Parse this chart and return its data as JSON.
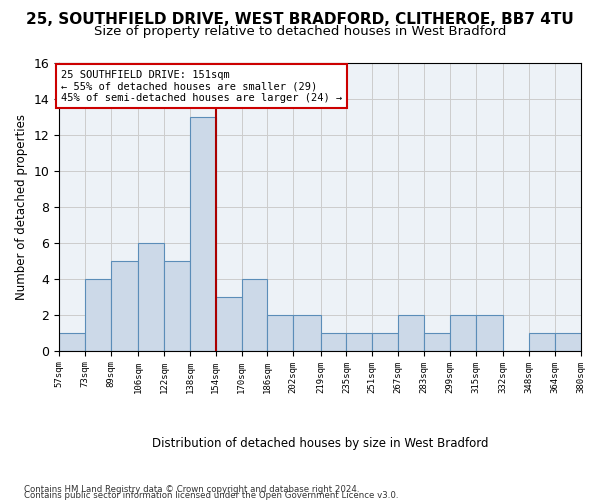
{
  "title1": "25, SOUTHFIELD DRIVE, WEST BRADFORD, CLITHEROE, BB7 4TU",
  "title2": "Size of property relative to detached houses in West Bradford",
  "xlabel": "Distribution of detached houses by size in West Bradford",
  "ylabel": "Number of detached properties",
  "footnote1": "Contains HM Land Registry data © Crown copyright and database right 2024.",
  "footnote2": "Contains public sector information licensed under the Open Government Licence v3.0.",
  "annotation_title": "25 SOUTHFIELD DRIVE: 151sqm",
  "annotation_line1": "← 55% of detached houses are smaller (29)",
  "annotation_line2": "45% of semi-detached houses are larger (24) →",
  "bar_edges": [
    57,
    73,
    89,
    106,
    122,
    138,
    154,
    170,
    186,
    202,
    219,
    235,
    251,
    267,
    283,
    299,
    315,
    332,
    348,
    364,
    380
  ],
  "bar_heights": [
    1,
    4,
    5,
    6,
    5,
    13,
    3,
    4,
    2,
    2,
    1,
    1,
    1,
    2,
    1,
    2,
    2,
    0,
    1,
    1
  ],
  "bar_color": "#ccd9e8",
  "bar_edgecolor": "#5b8db8",
  "property_line_x": 154,
  "ylim": [
    0,
    16
  ],
  "yticks": [
    0,
    2,
    4,
    6,
    8,
    10,
    12,
    14,
    16
  ],
  "grid_color": "#cccccc",
  "bg_color": "#edf2f7",
  "annotation_box_color": "#cc0000",
  "property_line_color": "#aa0000",
  "title_fontsize": 11,
  "subtitle_fontsize": 9.5
}
